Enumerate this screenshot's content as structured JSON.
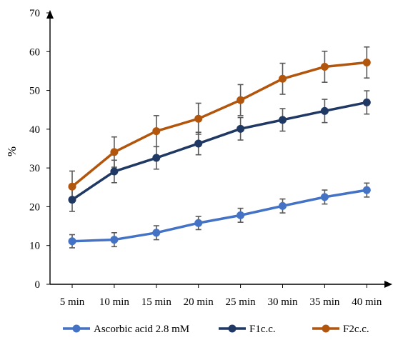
{
  "chart_data": {
    "type": "line",
    "title": "",
    "xlabel": "",
    "ylabel": "%",
    "ylim": [
      0,
      70
    ],
    "yticks": [
      0,
      10,
      20,
      30,
      40,
      50,
      60,
      70
    ],
    "categories": [
      "5 min",
      "10 min",
      "15 min",
      "20 min",
      "25 min",
      "30 min",
      "35 min",
      "40 min"
    ],
    "grid": false,
    "legend_position": "bottom",
    "series": [
      {
        "name": "Ascorbic acid 2.8 mM",
        "color": "#4472C4",
        "values": [
          11.1,
          11.5,
          13.3,
          15.8,
          17.8,
          20.2,
          22.5,
          24.3
        ],
        "errors": [
          1.7,
          1.8,
          1.8,
          1.7,
          1.8,
          1.8,
          1.8,
          1.8
        ]
      },
      {
        "name": "F1c.c.",
        "color": "#203864",
        "values": [
          21.8,
          29.1,
          32.6,
          36.3,
          40.1,
          42.4,
          44.7,
          46.9
        ],
        "errors": [
          3.0,
          2.9,
          2.9,
          2.9,
          2.9,
          2.9,
          3.0,
          3.0
        ]
      },
      {
        "name": "F2c.c.",
        "color": "#B2560E",
        "values": [
          25.2,
          34.1,
          39.5,
          42.7,
          47.5,
          53.0,
          56.1,
          57.2
        ],
        "errors": [
          4.0,
          3.9,
          4.0,
          4.0,
          4.0,
          4.0,
          4.0,
          4.0
        ]
      }
    ],
    "error_bar_color": "#595959",
    "axis_color": "#000000"
  }
}
